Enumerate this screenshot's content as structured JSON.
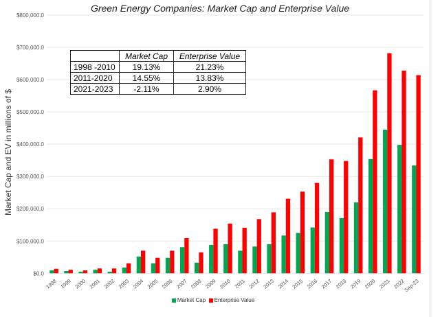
{
  "chart_data": {
    "type": "bar",
    "title": "Green Energy Companies: Market Cap and Enterprise Value",
    "ylabel": "Market Cap and EV in millions of $",
    "xlabel": "",
    "ylim": [
      0,
      800000
    ],
    "yticks": [
      "$0.0",
      "$100,000.0",
      "$200,000.0",
      "$300,000.0",
      "$400,000.0",
      "$500,000.0",
      "$600,000.0",
      "$700,000.0",
      "$800,000.0"
    ],
    "grid": true,
    "legend": "bottom",
    "categories": [
      "1998",
      "1999",
      "2000",
      "2001",
      "2002",
      "2003",
      "2004",
      "2005",
      "2006",
      "2007",
      "2008",
      "2009",
      "2010",
      "2011",
      "2012",
      "2013",
      "2014",
      "2015",
      "2016",
      "2017",
      "2018",
      "2019",
      "2020",
      "2021",
      "2022",
      "Sep-23"
    ],
    "series": [
      {
        "name": "Market Cap",
        "color": "#00a651",
        "values": [
          9000,
          7000,
          5000,
          11000,
          5000,
          18000,
          52000,
          31000,
          48000,
          81000,
          33000,
          88000,
          90000,
          70000,
          83000,
          90000,
          117000,
          125000,
          142000,
          190000,
          171000,
          220000,
          354000,
          445000,
          398000,
          334000
        ]
      },
      {
        "name": "Enterprise Value",
        "color": "#ff0000",
        "values": [
          14000,
          11000,
          9000,
          15000,
          15000,
          31000,
          70000,
          48000,
          70000,
          109000,
          65000,
          138000,
          154000,
          141000,
          168000,
          189000,
          231000,
          253000,
          280000,
          353000,
          348000,
          421000,
          567000,
          682000,
          628000,
          614000
        ]
      }
    ],
    "table": {
      "headers": [
        "",
        "Market Cap",
        "Enterprise Value"
      ],
      "rows": [
        [
          "1998 -2010",
          "19.13%",
          "21.23%"
        ],
        [
          "2011-2020",
          "14.55%",
          "13.83%"
        ],
        [
          "2021-2023",
          "-2.11%",
          "2.90%"
        ]
      ]
    }
  }
}
